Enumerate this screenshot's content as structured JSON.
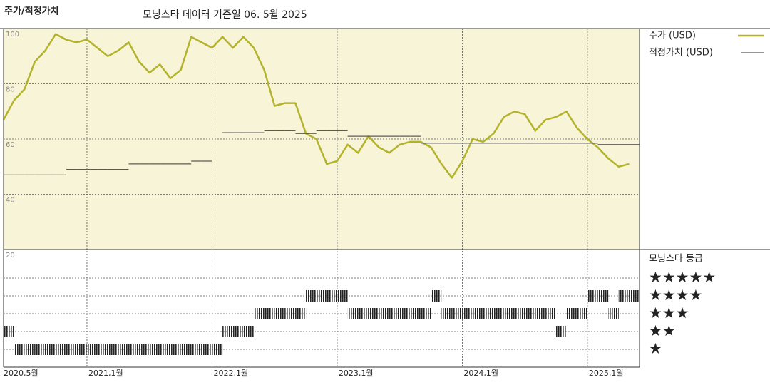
{
  "chart_data": [
    {
      "type": "line",
      "title": "주가/적정가치",
      "subtitle": "모닝스타 데이터 기준일 06. 5월 2025",
      "x": [
        "2020-05",
        "2020-06",
        "2020-07",
        "2020-08",
        "2020-09",
        "2020-10",
        "2020-11",
        "2020-12",
        "2021-01",
        "2021-02",
        "2021-03",
        "2021-04",
        "2021-05",
        "2021-06",
        "2021-07",
        "2021-08",
        "2021-09",
        "2021-10",
        "2021-11",
        "2021-12",
        "2022-01",
        "2022-02",
        "2022-03",
        "2022-04",
        "2022-05",
        "2022-06",
        "2022-07",
        "2022-08",
        "2022-09",
        "2022-10",
        "2022-11",
        "2022-12",
        "2023-01",
        "2023-02",
        "2023-03",
        "2023-04",
        "2023-05",
        "2023-06",
        "2023-07",
        "2023-08",
        "2023-09",
        "2023-10",
        "2023-11",
        "2023-12",
        "2024-01",
        "2024-02",
        "2024-03",
        "2024-04",
        "2024-05",
        "2024-06",
        "2024-07",
        "2024-08",
        "2024-09",
        "2024-10",
        "2024-11",
        "2024-12",
        "2025-01",
        "2025-02",
        "2025-03",
        "2025-04",
        "2025-05"
      ],
      "series": [
        {
          "name": "주가 (USD)",
          "color": "#b3b32b",
          "style": "line",
          "values": [
            67,
            74,
            78,
            88,
            92,
            98,
            96,
            95,
            96,
            93,
            90,
            92,
            95,
            88,
            84,
            87,
            82,
            85,
            97,
            95,
            93,
            97,
            93,
            97,
            93,
            85,
            72,
            73,
            73,
            62,
            60,
            51,
            52,
            58,
            55,
            61,
            57,
            55,
            58,
            59,
            59,
            57,
            51,
            46,
            52,
            60,
            59,
            62,
            68,
            70,
            69,
            63,
            67,
            68,
            70,
            64,
            60,
            57,
            53,
            50,
            51
          ]
        },
        {
          "name": "적정가치 (USD)",
          "color": "#555555",
          "style": "step",
          "values": [
            47,
            47,
            47,
            47,
            47,
            47,
            49,
            49,
            49,
            49,
            49,
            49,
            51,
            51,
            51,
            51,
            51,
            51,
            52,
            52,
            null,
            62.3,
            62.3,
            62.3,
            62.3,
            63,
            63,
            63,
            62,
            62,
            63,
            63,
            63,
            61,
            61,
            61,
            61,
            61,
            61,
            61,
            58.5,
            58.5,
            58.5,
            58.5,
            58.5,
            58.5,
            58.5,
            58.5,
            58.5,
            58.5,
            58.5,
            58.5,
            58.5,
            58.5,
            58.5,
            58.5,
            58.5,
            58,
            58,
            58,
            58
          ]
        }
      ],
      "xlim": [
        "2020-05",
        "2025-06"
      ],
      "xticks": [
        {
          "value": "2020-05",
          "label": "2020,5월"
        },
        {
          "value": "2021-01",
          "label": "2021,1월"
        },
        {
          "value": "2022-01",
          "label": "2022,1월"
        },
        {
          "value": "2023-01",
          "label": "2023,1월"
        },
        {
          "value": "2024-01",
          "label": "2024,1월"
        },
        {
          "value": "2025-01",
          "label": "2025,1월"
        }
      ],
      "ylim": [
        20,
        100
      ],
      "yticks": [
        20,
        40,
        60,
        80,
        100
      ],
      "grid": true
    },
    {
      "type": "rating",
      "title": "모닝스타 등급",
      "x": [
        "2020-05",
        "2020-06",
        "2020-07",
        "2020-08",
        "2020-09",
        "2020-10",
        "2020-11",
        "2020-12",
        "2021-01",
        "2021-02",
        "2021-03",
        "2021-04",
        "2021-05",
        "2021-06",
        "2021-07",
        "2021-08",
        "2021-09",
        "2021-10",
        "2021-11",
        "2021-12",
        "2022-01",
        "2022-02",
        "2022-03",
        "2022-04",
        "2022-05",
        "2022-06",
        "2022-07",
        "2022-08",
        "2022-09",
        "2022-10",
        "2022-11",
        "2022-12",
        "2023-01",
        "2023-02",
        "2023-03",
        "2023-04",
        "2023-05",
        "2023-06",
        "2023-07",
        "2023-08",
        "2023-09",
        "2023-10",
        "2023-11",
        "2023-12",
        "2024-01",
        "2024-02",
        "2024-03",
        "2024-04",
        "2024-05",
        "2024-06",
        "2024-07",
        "2024-08",
        "2024-09",
        "2024-10",
        "2024-11",
        "2024-12",
        "2025-01",
        "2025-02",
        "2025-03",
        "2025-04",
        "2025-05"
      ],
      "values": [
        2,
        1,
        1,
        1,
        1,
        1,
        1,
        1,
        1,
        1,
        1,
        1,
        1,
        1,
        1,
        1,
        1,
        1,
        1,
        1,
        1,
        2,
        2,
        2,
        3,
        3,
        3,
        3,
        3,
        4,
        4,
        4,
        4,
        3,
        3,
        3,
        3,
        3,
        3,
        3,
        3,
        4,
        3,
        3,
        3,
        3,
        3,
        3,
        3,
        3,
        3,
        3,
        3,
        2,
        3,
        3,
        4,
        4,
        3,
        4,
        4
      ],
      "color": "#222222",
      "xlim": [
        "2020-05",
        "2025-06"
      ],
      "ylim": [
        0,
        6.6
      ],
      "yticks": [
        {
          "value": 5,
          "label": "★★★★★"
        },
        {
          "value": 4,
          "label": "★★★★"
        },
        {
          "value": 3,
          "label": "★★★"
        },
        {
          "value": 2,
          "label": "★★"
        },
        {
          "value": 1,
          "label": "★"
        }
      ]
    }
  ]
}
